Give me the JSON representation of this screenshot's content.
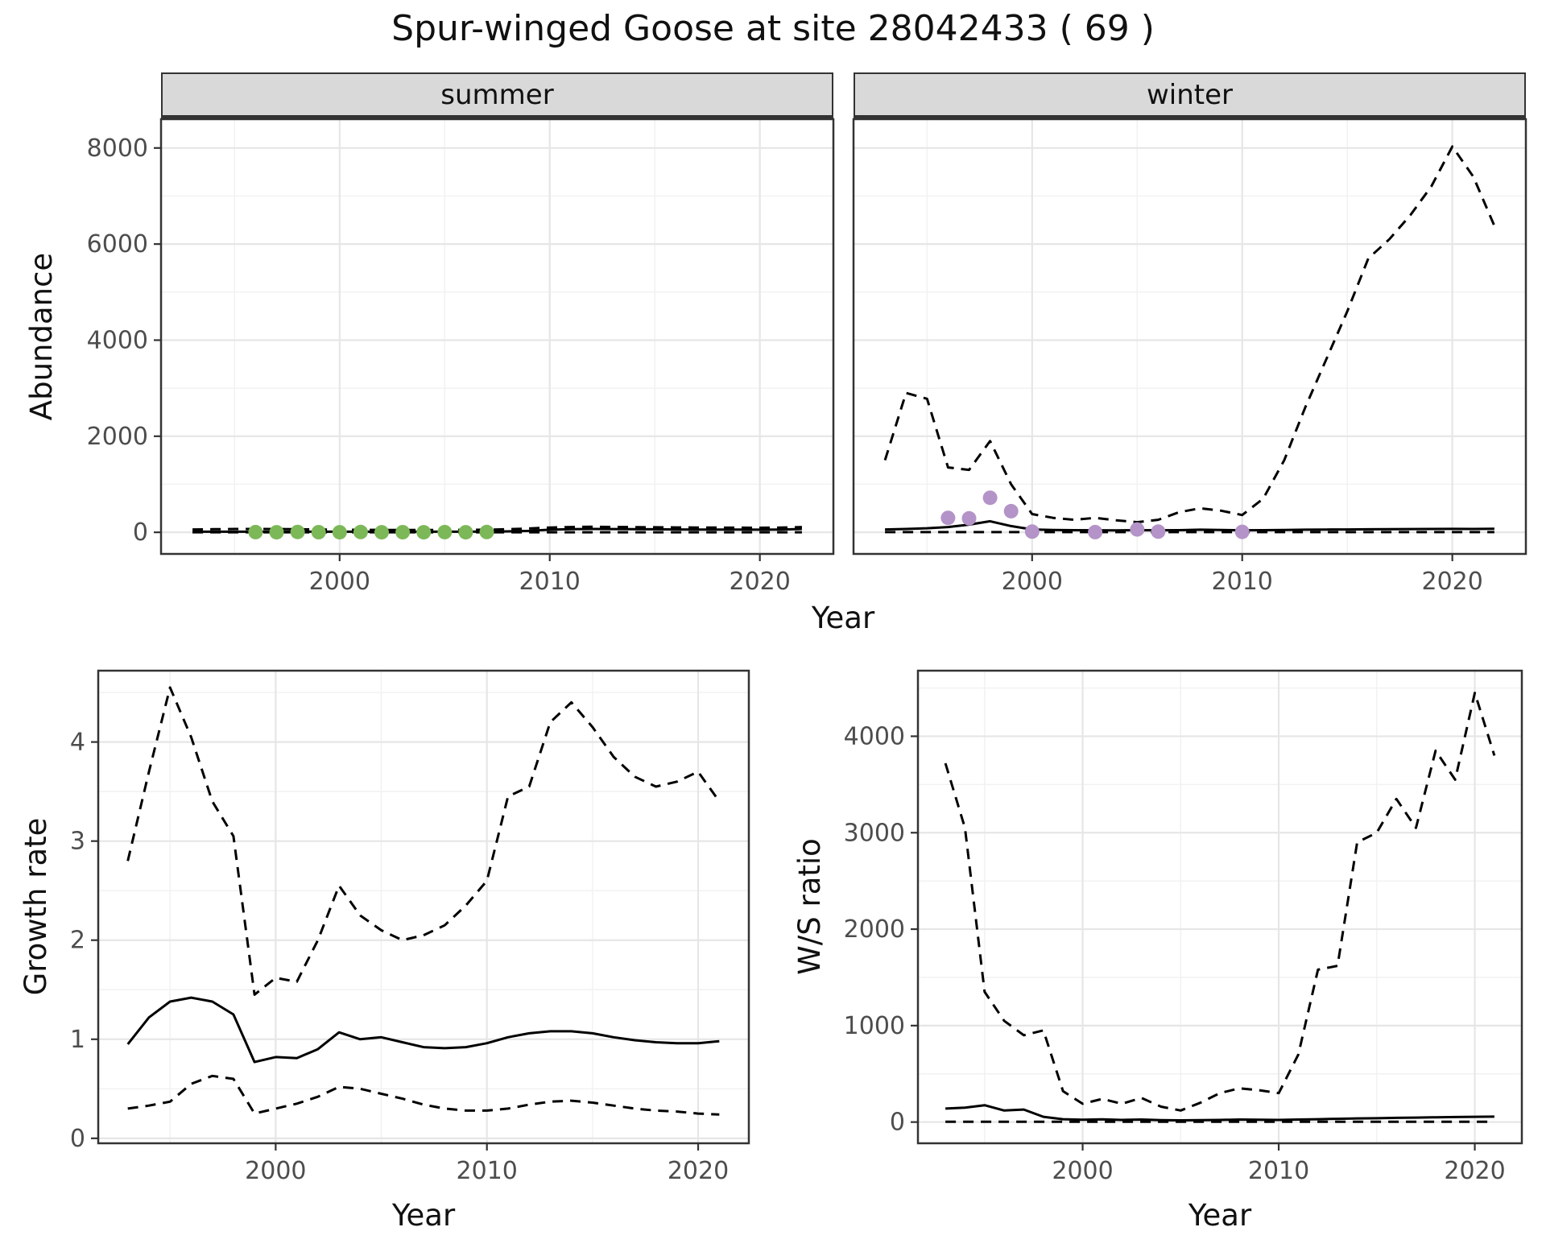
{
  "title": "Spur-winged Goose at site 28042433 ( 69 )",
  "colors": {
    "line": "#000000",
    "summer_points": "#7cb857",
    "winter_points": "#b493c8",
    "strip_bg": "#d9d9d9",
    "panel_border": "#333333",
    "grid_major": "#e6e6e6",
    "grid_minor": "#f1f1f1",
    "tick_text": "#4d4d4d"
  },
  "chart_data": [
    {
      "id": "abundance",
      "type": "line",
      "xlabel": "Year",
      "ylabel": "Abundance",
      "xlim": [
        1991.5,
        2023.5
      ],
      "ylim": [
        -450,
        8600
      ],
      "xticks": [
        2000,
        2010,
        2020
      ],
      "yticks": [
        0,
        2000,
        4000,
        6000,
        8000
      ],
      "grid": true,
      "legend": "none",
      "facets": [
        {
          "label": "summer",
          "series": [
            {
              "name": "modelled-abundance",
              "style": "solid",
              "x": [
                1993,
                1994,
                1995,
                1996,
                1997,
                1998,
                1999,
                2000,
                2001,
                2002,
                2003,
                2004,
                2005,
                2006,
                2007,
                2008,
                2009,
                2010,
                2011,
                2012,
                2013,
                2014,
                2015,
                2016,
                2017,
                2018,
                2019,
                2020,
                2021,
                2022
              ],
              "y": [
                12,
                12,
                12,
                12,
                12,
                12,
                12,
                12,
                12,
                12,
                12,
                12,
                12,
                12,
                15,
                20,
                30,
                55,
                65,
                70,
                68,
                65,
                62,
                60,
                58,
                58,
                56,
                55,
                58,
                70
              ]
            },
            {
              "name": "upper-ci",
              "style": "dashed",
              "x": [
                1993,
                1994,
                1995,
                1996,
                1997,
                1998,
                1999,
                2000,
                2001,
                2002,
                2003,
                2004,
                2005,
                2006,
                2007,
                2008,
                2009,
                2010,
                2011,
                2012,
                2013,
                2014,
                2015,
                2016,
                2017,
                2018,
                2019,
                2020,
                2021,
                2022
              ],
              "y": [
                60,
                65,
                70,
                70,
                68,
                65,
                60,
                55,
                52,
                50,
                50,
                50,
                50,
                52,
                55,
                65,
                80,
                100,
                110,
                115,
                112,
                108,
                105,
                102,
                100,
                98,
                96,
                94,
                98,
                110
              ]
            },
            {
              "name": "lower-ci",
              "style": "dashed",
              "x": [
                1993,
                1994,
                1995,
                1996,
                1997,
                1998,
                1999,
                2000,
                2001,
                2002,
                2003,
                2004,
                2005,
                2006,
                2007,
                2008,
                2009,
                2010,
                2011,
                2012,
                2013,
                2014,
                2015,
                2016,
                2017,
                2018,
                2019,
                2020,
                2021,
                2022
              ],
              "y": [
                0,
                0,
                0,
                0,
                0,
                0,
                0,
                0,
                0,
                0,
                0,
                0,
                0,
                0,
                0,
                0,
                0,
                0,
                0,
                0,
                0,
                0,
                0,
                0,
                0,
                0,
                0,
                0,
                0,
                0
              ]
            }
          ],
          "points": {
            "name": "summer-observed-counts",
            "color": "#7cb857",
            "x": [
              1996,
              1997,
              1998,
              1999,
              2000,
              2001,
              2002,
              2003,
              2004,
              2005,
              2006,
              2007
            ],
            "y": [
              5,
              0,
              8,
              3,
              0,
              6,
              0,
              2,
              0,
              4,
              0,
              6
            ]
          }
        },
        {
          "label": "winter",
          "series": [
            {
              "name": "modelled-abundance",
              "style": "solid",
              "x": [
                1993,
                1994,
                1995,
                1996,
                1997,
                1998,
                1999,
                2000,
                2001,
                2002,
                2003,
                2004,
                2005,
                2006,
                2007,
                2008,
                2009,
                2010,
                2011,
                2012,
                2013,
                2014,
                2015,
                2016,
                2017,
                2018,
                2019,
                2020,
                2021,
                2022
              ],
              "y": [
                60,
                70,
                85,
                110,
                160,
                230,
                130,
                60,
                50,
                45,
                42,
                40,
                45,
                42,
                45,
                55,
                50,
                42,
                45,
                50,
                55,
                58,
                60,
                62,
                65,
                68,
                70,
                72,
                70,
                75
              ]
            },
            {
              "name": "upper-ci",
              "style": "dashed",
              "x": [
                1993,
                1994,
                1995,
                1996,
                1997,
                1998,
                1999,
                2000,
                2001,
                2002,
                2003,
                2004,
                2005,
                2006,
                2007,
                2008,
                2009,
                2010,
                2011,
                2012,
                2013,
                2014,
                2015,
                2016,
                2017,
                2018,
                2019,
                2020,
                2021,
                2022
              ],
              "y": [
                1500,
                2900,
                2780,
                1350,
                1300,
                1900,
                1000,
                380,
                300,
                260,
                300,
                250,
                210,
                260,
                420,
                500,
                450,
                360,
                700,
                1500,
                2600,
                3600,
                4600,
                5700,
                6100,
                6600,
                7200,
                8030,
                7400,
                6380
              ]
            },
            {
              "name": "lower-ci",
              "style": "dashed",
              "x": [
                1993,
                1994,
                1995,
                1996,
                1997,
                1998,
                1999,
                2000,
                2001,
                2002,
                2003,
                2004,
                2005,
                2006,
                2007,
                2008,
                2009,
                2010,
                2011,
                2012,
                2013,
                2014,
                2015,
                2016,
                2017,
                2018,
                2019,
                2020,
                2021,
                2022
              ],
              "y": [
                5,
                5,
                5,
                5,
                5,
                5,
                5,
                5,
                5,
                5,
                5,
                5,
                5,
                5,
                5,
                5,
                5,
                5,
                5,
                5,
                5,
                5,
                5,
                5,
                5,
                5,
                5,
                5,
                5,
                5
              ]
            }
          ],
          "points": {
            "name": "winter-observed-counts",
            "color": "#b493c8",
            "x": [
              1996,
              1997,
              1998,
              1999,
              2000,
              2003,
              2005,
              2006,
              2010
            ],
            "y": [
              300,
              290,
              720,
              440,
              15,
              5,
              60,
              15,
              10
            ]
          }
        }
      ]
    },
    {
      "id": "growth_rate",
      "type": "line",
      "xlabel": "Year",
      "ylabel": "Growth rate",
      "xlim": [
        1991.6,
        2022.4
      ],
      "ylim": [
        -0.05,
        4.72
      ],
      "xticks": [
        2000,
        2010,
        2020
      ],
      "yticks": [
        0,
        1,
        2,
        3,
        4
      ],
      "grid": true,
      "legend": "none",
      "series": [
        {
          "name": "growth-rate-estimate",
          "style": "solid",
          "x": [
            1993,
            1994,
            1995,
            1996,
            1997,
            1998,
            1999,
            2000,
            2001,
            2002,
            2003,
            2004,
            2005,
            2006,
            2007,
            2008,
            2009,
            2010,
            2011,
            2012,
            2013,
            2014,
            2015,
            2016,
            2017,
            2018,
            2019,
            2020,
            2021
          ],
          "y": [
            0.95,
            1.22,
            1.38,
            1.42,
            1.38,
            1.25,
            0.77,
            0.82,
            0.81,
            0.9,
            1.07,
            1.0,
            1.02,
            0.97,
            0.92,
            0.91,
            0.92,
            0.96,
            1.02,
            1.06,
            1.08,
            1.08,
            1.06,
            1.02,
            0.99,
            0.97,
            0.96,
            0.96,
            0.98
          ]
        },
        {
          "name": "upper-ci",
          "style": "dashed",
          "x": [
            1993,
            1994,
            1995,
            1996,
            1997,
            1998,
            1999,
            2000,
            2001,
            2002,
            2003,
            2004,
            2005,
            2006,
            2007,
            2008,
            2009,
            2010,
            2011,
            2012,
            2013,
            2014,
            2015,
            2016,
            2017,
            2018,
            2019,
            2020,
            2021
          ],
          "y": [
            2.8,
            3.7,
            4.55,
            4.05,
            3.4,
            3.05,
            1.45,
            1.62,
            1.58,
            2.0,
            2.55,
            2.25,
            2.1,
            2.0,
            2.05,
            2.15,
            2.35,
            2.6,
            3.45,
            3.55,
            4.2,
            4.4,
            4.15,
            3.85,
            3.65,
            3.55,
            3.6,
            3.7,
            3.4
          ]
        },
        {
          "name": "lower-ci",
          "style": "dashed",
          "x": [
            1993,
            1994,
            1995,
            1996,
            1997,
            1998,
            1999,
            2000,
            2001,
            2002,
            2003,
            2004,
            2005,
            2006,
            2007,
            2008,
            2009,
            2010,
            2011,
            2012,
            2013,
            2014,
            2015,
            2016,
            2017,
            2018,
            2019,
            2020,
            2021
          ],
          "y": [
            0.3,
            0.33,
            0.37,
            0.55,
            0.63,
            0.6,
            0.25,
            0.3,
            0.35,
            0.42,
            0.52,
            0.5,
            0.45,
            0.4,
            0.34,
            0.3,
            0.28,
            0.28,
            0.3,
            0.34,
            0.37,
            0.38,
            0.36,
            0.33,
            0.3,
            0.28,
            0.27,
            0.25,
            0.24
          ]
        }
      ]
    },
    {
      "id": "ws_ratio",
      "type": "line",
      "xlabel": "Year",
      "ylabel": "W/S ratio",
      "xlim": [
        1991.6,
        2022.4
      ],
      "ylim": [
        -220,
        4680
      ],
      "xticks": [
        2000,
        2010,
        2020
      ],
      "yticks": [
        0,
        1000,
        2000,
        3000,
        4000
      ],
      "grid": true,
      "legend": "none",
      "series": [
        {
          "name": "ws-ratio-estimate",
          "style": "solid",
          "x": [
            1993,
            1994,
            1995,
            1996,
            1997,
            1998,
            1999,
            2000,
            2001,
            2002,
            2003,
            2004,
            2005,
            2006,
            2007,
            2008,
            2009,
            2010,
            2011,
            2012,
            2013,
            2014,
            2015,
            2016,
            2017,
            2018,
            2019,
            2020,
            2021
          ],
          "y": [
            140,
            150,
            175,
            120,
            130,
            55,
            30,
            25,
            28,
            22,
            26,
            20,
            18,
            20,
            22,
            26,
            24,
            22,
            26,
            30,
            34,
            38,
            40,
            44,
            46,
            50,
            52,
            55,
            56
          ]
        },
        {
          "name": "upper-ci",
          "style": "dashed",
          "x": [
            1993,
            1994,
            1995,
            1996,
            1997,
            1998,
            1999,
            2000,
            2001,
            2002,
            2003,
            2004,
            2005,
            2006,
            2007,
            2008,
            2009,
            2010,
            2011,
            2012,
            2013,
            2014,
            2015,
            2016,
            2017,
            2018,
            2019,
            2020,
            2021
          ],
          "y": [
            3720,
            3050,
            1350,
            1050,
            900,
            950,
            320,
            190,
            240,
            190,
            250,
            160,
            120,
            200,
            300,
            350,
            330,
            300,
            700,
            1580,
            1620,
            2900,
            3000,
            3350,
            3050,
            3850,
            3550,
            4450,
            3800
          ]
        },
        {
          "name": "lower-ci",
          "style": "dashed",
          "x": [
            1993,
            1994,
            1995,
            1996,
            1997,
            1998,
            1999,
            2000,
            2001,
            2002,
            2003,
            2004,
            2005,
            2006,
            2007,
            2008,
            2009,
            2010,
            2011,
            2012,
            2013,
            2014,
            2015,
            2016,
            2017,
            2018,
            2019,
            2020,
            2021
          ],
          "y": [
            3,
            3,
            3,
            3,
            3,
            3,
            3,
            3,
            3,
            3,
            3,
            3,
            3,
            3,
            3,
            3,
            3,
            3,
            3,
            3,
            3,
            3,
            3,
            3,
            3,
            3,
            3,
            3,
            3
          ]
        }
      ]
    }
  ]
}
